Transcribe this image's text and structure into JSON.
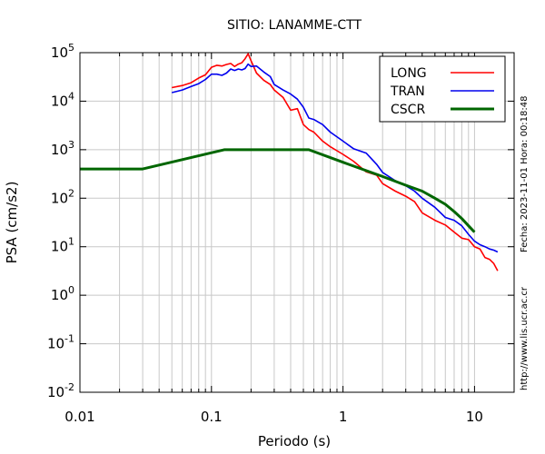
{
  "chart_data": {
    "type": "line",
    "title": "SITIO: LANAMME-CTT",
    "xlabel": "Periodo (s)",
    "ylabel": "PSA (cm/s2)",
    "xscale": "log",
    "yscale": "log",
    "xlim": [
      0.01,
      20
    ],
    "ylim": [
      0.01,
      100000
    ],
    "x_ticks": [
      {
        "value": 0.01,
        "label": "0.01"
      },
      {
        "value": 0.1,
        "label": "0.1"
      },
      {
        "value": 1,
        "label": "1"
      },
      {
        "value": 10,
        "label": "10"
      }
    ],
    "y_ticks": [
      {
        "value": 0.01,
        "base": "10",
        "exp": "-2"
      },
      {
        "value": 0.1,
        "base": "10",
        "exp": "-1"
      },
      {
        "value": 1,
        "base": "10",
        "exp": "0"
      },
      {
        "value": 10,
        "base": "10",
        "exp": "1"
      },
      {
        "value": 100,
        "base": "10",
        "exp": "2"
      },
      {
        "value": 1000,
        "base": "10",
        "exp": "3"
      },
      {
        "value": 10000,
        "base": "10",
        "exp": "4"
      },
      {
        "value": 100000,
        "base": "10",
        "exp": "5"
      }
    ],
    "grid": true,
    "legend_position": "top-right",
    "series": [
      {
        "name": "LONG",
        "color": "#ff0000",
        "x": [
          0.05,
          0.06,
          0.07,
          0.08,
          0.09,
          0.1,
          0.11,
          0.12,
          0.13,
          0.14,
          0.15,
          0.16,
          0.17,
          0.18,
          0.19,
          0.2,
          0.22,
          0.25,
          0.28,
          0.3,
          0.35,
          0.4,
          0.45,
          0.5,
          0.55,
          0.6,
          0.7,
          0.8,
          1.0,
          1.2,
          1.5,
          1.8,
          2.0,
          2.5,
          3.0,
          3.5,
          4.0,
          5.0,
          6.0,
          7.0,
          8.0,
          9.0,
          10.0,
          11.0,
          12.0,
          13.0,
          14.0,
          15.0
        ],
        "y": [
          19000,
          21000,
          24000,
          30000,
          35000,
          50000,
          55000,
          53000,
          57000,
          60000,
          52000,
          58000,
          62000,
          75000,
          95000,
          68000,
          38000,
          27000,
          22000,
          17000,
          12000,
          6500,
          7000,
          3300,
          2600,
          2300,
          1500,
          1150,
          800,
          580,
          350,
          300,
          200,
          140,
          110,
          85,
          50,
          35,
          28,
          20,
          15,
          14,
          10,
          9,
          6,
          5.5,
          4.5,
          3.2
        ]
      },
      {
        "name": "TRAN",
        "color": "#0000ee",
        "x": [
          0.05,
          0.06,
          0.07,
          0.08,
          0.09,
          0.1,
          0.11,
          0.12,
          0.13,
          0.14,
          0.15,
          0.16,
          0.17,
          0.18,
          0.19,
          0.2,
          0.22,
          0.25,
          0.28,
          0.3,
          0.35,
          0.4,
          0.45,
          0.5,
          0.55,
          0.6,
          0.7,
          0.8,
          1.0,
          1.2,
          1.5,
          1.8,
          2.0,
          2.5,
          3.0,
          3.5,
          4.0,
          5.0,
          6.0,
          7.0,
          8.0,
          9.0,
          10.0,
          11.0,
          12.0,
          13.0,
          14.0,
          15.0
        ],
        "y": [
          15000,
          17000,
          20000,
          23000,
          28000,
          36000,
          36000,
          34000,
          38000,
          46000,
          43000,
          46000,
          44000,
          47000,
          58000,
          52000,
          53000,
          40000,
          32000,
          22000,
          17000,
          14000,
          11000,
          7500,
          4500,
          4200,
          3300,
          2300,
          1500,
          1050,
          850,
          500,
          340,
          230,
          180,
          140,
          100,
          65,
          40,
          35,
          27,
          18,
          13,
          11,
          10,
          9,
          8.5,
          7.8
        ]
      },
      {
        "name": "CSCR",
        "color": "#006600",
        "x": [
          0.01,
          0.03,
          0.125,
          0.55,
          1.0,
          2.0,
          3.0,
          4.0,
          5.0,
          6.0,
          7.0,
          8.0,
          9.0,
          10.0
        ],
        "y": [
          400,
          400,
          1000,
          1000,
          550,
          280,
          185,
          140,
          100,
          75,
          53,
          38,
          27,
          20
        ]
      }
    ]
  },
  "side_labels": {
    "date": "Fecha: 2023-11-01  Hora: 00:18:48",
    "url": "http://www.lis.ucr.ac.cr"
  }
}
